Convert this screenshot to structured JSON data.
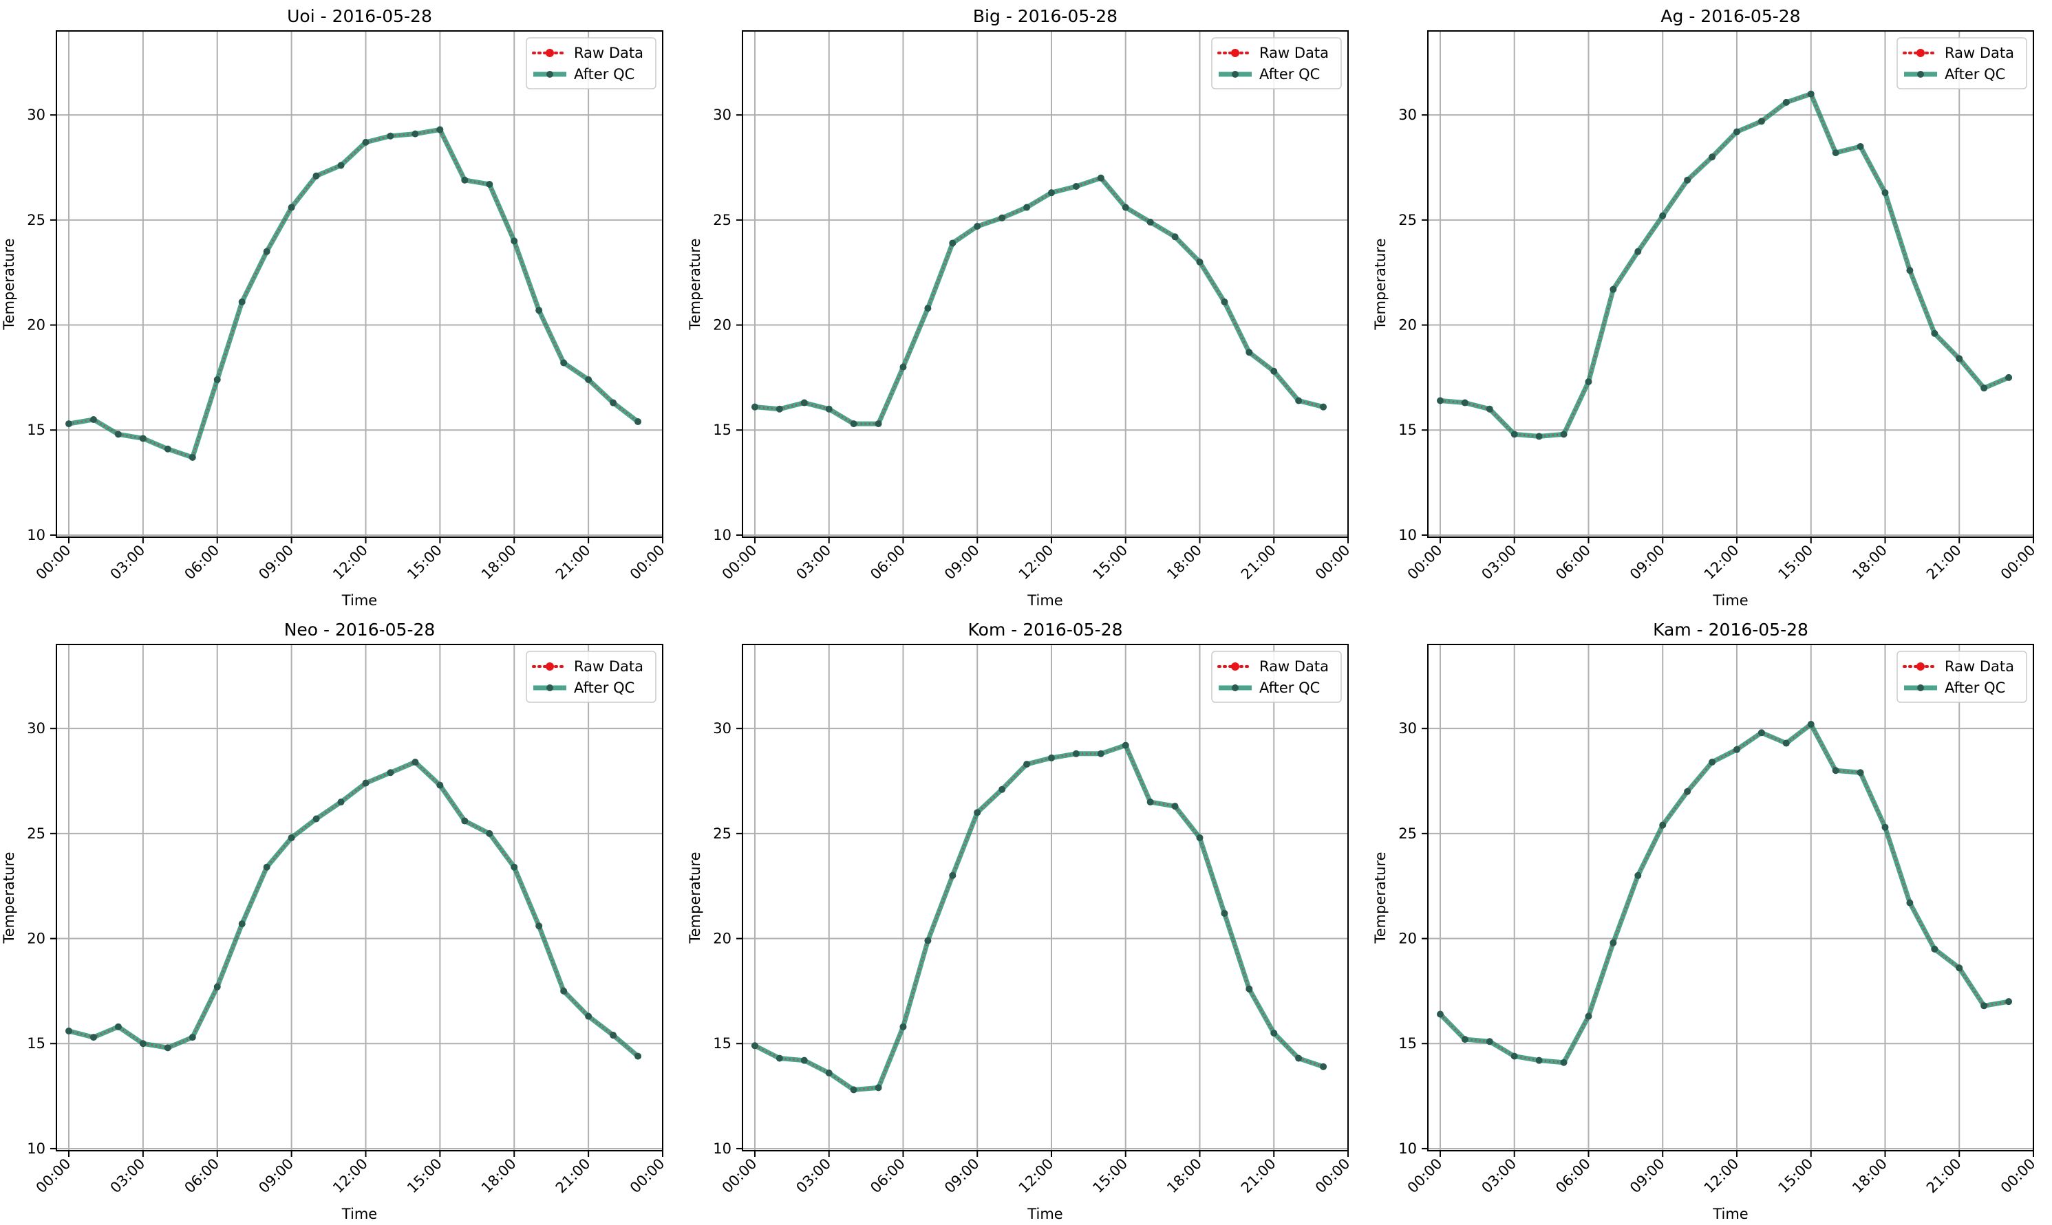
{
  "figure": {
    "legend_labels": [
      "Raw Data",
      "After QC"
    ],
    "colors": {
      "raw": "#e8141a",
      "qc": "#1b8a6c",
      "marker": "#2b5b50",
      "grid": "#b0b0b0"
    }
  },
  "chart_data": [
    {
      "type": "line",
      "title": "Uoi - 2016-05-28",
      "xlabel": "Time",
      "ylabel": "Temperature",
      "x_tick_labels": [
        "00:00",
        "03:00",
        "06:00",
        "09:00",
        "12:00",
        "15:00",
        "18:00",
        "21:00",
        "00:00"
      ],
      "xlim_hours": [
        -0.5,
        24
      ],
      "ylim": [
        9.9,
        34
      ],
      "y_ticks": [
        10,
        15,
        20,
        25,
        30
      ],
      "grid": true,
      "legend_position": "upper right",
      "x_hours": [
        0,
        1,
        2,
        3,
        4,
        5,
        6,
        7,
        8,
        9,
        10,
        11,
        12,
        13,
        14,
        15,
        16,
        17,
        18,
        19,
        20,
        21,
        22,
        23
      ],
      "series": [
        {
          "name": "Raw Data",
          "style": "dotted",
          "values": [
            15.3,
            15.5,
            14.8,
            14.6,
            14.1,
            13.7,
            17.4,
            21.1,
            23.5,
            25.6,
            27.1,
            27.6,
            28.7,
            29.0,
            29.1,
            29.3,
            26.9,
            26.7,
            24.0,
            20.7,
            18.2,
            17.4,
            16.3,
            15.4
          ]
        },
        {
          "name": "After QC",
          "style": "solid",
          "values": [
            15.3,
            15.5,
            14.8,
            14.6,
            14.1,
            13.7,
            17.4,
            21.1,
            23.5,
            25.6,
            27.1,
            27.6,
            28.7,
            29.0,
            29.1,
            29.3,
            26.9,
            26.7,
            24.0,
            20.7,
            18.2,
            17.4,
            16.3,
            15.4
          ]
        }
      ]
    },
    {
      "type": "line",
      "title": "Big - 2016-05-28",
      "xlabel": "Time",
      "ylabel": "Temperature",
      "x_tick_labels": [
        "00:00",
        "03:00",
        "06:00",
        "09:00",
        "12:00",
        "15:00",
        "18:00",
        "21:00",
        "00:00"
      ],
      "xlim_hours": [
        -0.5,
        24
      ],
      "ylim": [
        9.9,
        34
      ],
      "y_ticks": [
        10,
        15,
        20,
        25,
        30
      ],
      "grid": true,
      "legend_position": "upper right",
      "x_hours": [
        0,
        1,
        2,
        3,
        4,
        5,
        6,
        7,
        8,
        9,
        10,
        11,
        12,
        13,
        14,
        15,
        16,
        17,
        18,
        19,
        20,
        21,
        22,
        23
      ],
      "series": [
        {
          "name": "Raw Data",
          "style": "dotted",
          "values": [
            16.1,
            16.0,
            16.3,
            16.0,
            15.3,
            15.3,
            18.0,
            20.8,
            23.9,
            24.7,
            25.1,
            25.6,
            26.3,
            26.6,
            27.0,
            25.6,
            24.9,
            24.2,
            23.0,
            21.1,
            18.7,
            17.8,
            16.4,
            16.1
          ]
        },
        {
          "name": "After QC",
          "style": "solid",
          "values": [
            16.1,
            16.0,
            16.3,
            16.0,
            15.3,
            15.3,
            18.0,
            20.8,
            23.9,
            24.7,
            25.1,
            25.6,
            26.3,
            26.6,
            27.0,
            25.6,
            24.9,
            24.2,
            23.0,
            21.1,
            18.7,
            17.8,
            16.4,
            16.1
          ]
        }
      ]
    },
    {
      "type": "line",
      "title": "Ag - 2016-05-28",
      "xlabel": "Time",
      "ylabel": "Temperature",
      "x_tick_labels": [
        "00:00",
        "03:00",
        "06:00",
        "09:00",
        "12:00",
        "15:00",
        "18:00",
        "21:00",
        "00:00"
      ],
      "xlim_hours": [
        -0.5,
        24
      ],
      "ylim": [
        9.9,
        34
      ],
      "y_ticks": [
        10,
        15,
        20,
        25,
        30
      ],
      "grid": true,
      "legend_position": "upper right",
      "x_hours": [
        0,
        1,
        2,
        3,
        4,
        5,
        6,
        7,
        8,
        9,
        10,
        11,
        12,
        13,
        14,
        15,
        16,
        17,
        18,
        19,
        20,
        21,
        22,
        23
      ],
      "series": [
        {
          "name": "Raw Data",
          "style": "dotted",
          "values": [
            16.4,
            16.3,
            16.0,
            14.8,
            14.7,
            14.8,
            17.3,
            21.7,
            23.5,
            25.2,
            26.9,
            28.0,
            29.2,
            29.7,
            30.6,
            31.0,
            28.2,
            28.5,
            26.3,
            22.6,
            19.6,
            18.4,
            17.0,
            17.5
          ]
        },
        {
          "name": "After QC",
          "style": "solid",
          "values": [
            16.4,
            16.3,
            16.0,
            14.8,
            14.7,
            14.8,
            17.3,
            21.7,
            23.5,
            25.2,
            26.9,
            28.0,
            29.2,
            29.7,
            30.6,
            31.0,
            28.2,
            28.5,
            26.3,
            22.6,
            19.6,
            18.4,
            17.0,
            17.5
          ]
        }
      ]
    },
    {
      "type": "line",
      "title": "Neo - 2016-05-28",
      "xlabel": "Time",
      "ylabel": "Temperature",
      "x_tick_labels": [
        "00:00",
        "03:00",
        "06:00",
        "09:00",
        "12:00",
        "15:00",
        "18:00",
        "21:00",
        "00:00"
      ],
      "xlim_hours": [
        -0.5,
        24
      ],
      "ylim": [
        9.9,
        34
      ],
      "y_ticks": [
        10,
        15,
        20,
        25,
        30
      ],
      "grid": true,
      "legend_position": "upper right",
      "x_hours": [
        0,
        1,
        2,
        3,
        4,
        5,
        6,
        7,
        8,
        9,
        10,
        11,
        12,
        13,
        14,
        15,
        16,
        17,
        18,
        19,
        20,
        21,
        22,
        23
      ],
      "series": [
        {
          "name": "Raw Data",
          "style": "dotted",
          "values": [
            15.6,
            15.3,
            15.8,
            15.0,
            14.8,
            15.3,
            17.7,
            20.7,
            23.4,
            24.8,
            25.7,
            26.5,
            27.4,
            27.9,
            28.4,
            27.3,
            25.6,
            25.0,
            23.4,
            20.6,
            17.5,
            16.3,
            15.4,
            14.4
          ]
        },
        {
          "name": "After QC",
          "style": "solid",
          "values": [
            15.6,
            15.3,
            15.8,
            15.0,
            14.8,
            15.3,
            17.7,
            20.7,
            23.4,
            24.8,
            25.7,
            26.5,
            27.4,
            27.9,
            28.4,
            27.3,
            25.6,
            25.0,
            23.4,
            20.6,
            17.5,
            16.3,
            15.4,
            14.4
          ]
        }
      ]
    },
    {
      "type": "line",
      "title": "Kom - 2016-05-28",
      "xlabel": "Time",
      "ylabel": "Temperature",
      "x_tick_labels": [
        "00:00",
        "03:00",
        "06:00",
        "09:00",
        "12:00",
        "15:00",
        "18:00",
        "21:00",
        "00:00"
      ],
      "xlim_hours": [
        -0.5,
        24
      ],
      "ylim": [
        9.9,
        34
      ],
      "y_ticks": [
        10,
        15,
        20,
        25,
        30
      ],
      "grid": true,
      "legend_position": "upper right",
      "x_hours": [
        0,
        1,
        2,
        3,
        4,
        5,
        6,
        7,
        8,
        9,
        10,
        11,
        12,
        13,
        14,
        15,
        16,
        17,
        18,
        19,
        20,
        21,
        22,
        23
      ],
      "series": [
        {
          "name": "Raw Data",
          "style": "dotted",
          "values": [
            14.9,
            14.3,
            14.2,
            13.6,
            12.8,
            12.9,
            15.8,
            19.9,
            23.0,
            26.0,
            27.1,
            28.3,
            28.6,
            28.8,
            28.8,
            29.2,
            26.5,
            26.3,
            24.8,
            21.2,
            17.6,
            15.5,
            14.3,
            13.9
          ]
        },
        {
          "name": "After QC",
          "style": "solid",
          "values": [
            14.9,
            14.3,
            14.2,
            13.6,
            12.8,
            12.9,
            15.8,
            19.9,
            23.0,
            26.0,
            27.1,
            28.3,
            28.6,
            28.8,
            28.8,
            29.2,
            26.5,
            26.3,
            24.8,
            21.2,
            17.6,
            15.5,
            14.3,
            13.9
          ]
        }
      ]
    },
    {
      "type": "line",
      "title": "Kam - 2016-05-28",
      "xlabel": "Time",
      "ylabel": "Temperature",
      "x_tick_labels": [
        "00:00",
        "03:00",
        "06:00",
        "09:00",
        "12:00",
        "15:00",
        "18:00",
        "21:00",
        "00:00"
      ],
      "xlim_hours": [
        -0.5,
        24
      ],
      "ylim": [
        9.9,
        34
      ],
      "y_ticks": [
        10,
        15,
        20,
        25,
        30
      ],
      "grid": true,
      "legend_position": "upper right",
      "x_hours": [
        0,
        1,
        2,
        3,
        4,
        5,
        6,
        7,
        8,
        9,
        10,
        11,
        12,
        13,
        14,
        15,
        16,
        17,
        18,
        19,
        20,
        21,
        22,
        23
      ],
      "series": [
        {
          "name": "Raw Data",
          "style": "dotted",
          "values": [
            16.4,
            15.2,
            15.1,
            14.4,
            14.2,
            14.1,
            16.3,
            19.8,
            23.0,
            25.4,
            27.0,
            28.4,
            29.0,
            29.8,
            29.3,
            30.2,
            28.0,
            27.9,
            25.3,
            21.7,
            19.5,
            18.6,
            16.8,
            17.0
          ]
        },
        {
          "name": "After QC",
          "style": "solid",
          "values": [
            16.4,
            15.2,
            15.1,
            14.4,
            14.2,
            14.1,
            16.3,
            19.8,
            23.0,
            25.4,
            27.0,
            28.4,
            29.0,
            29.8,
            29.3,
            30.2,
            28.0,
            27.9,
            25.3,
            21.7,
            19.5,
            18.6,
            16.8,
            17.0
          ]
        }
      ]
    }
  ]
}
